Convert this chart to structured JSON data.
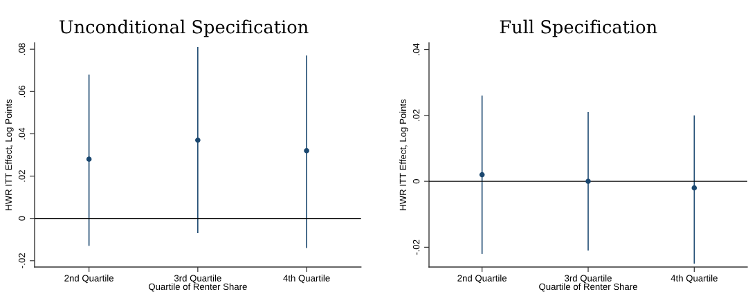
{
  "chart_data": [
    {
      "type": "scatter",
      "title": "Unconditional Specification",
      "xlabel": "Quartile of Renter Share",
      "ylabel": "HWR ITT Effect, Log Points",
      "categories": [
        "2nd Quartile",
        "3rd Quartile",
        "4th Quartile"
      ],
      "values": [
        0.028,
        0.037,
        0.032
      ],
      "errors": [
        [
          -0.013,
          0.068
        ],
        [
          -0.007,
          0.081
        ],
        [
          -0.014,
          0.077
        ]
      ],
      "color": "#1a476f",
      "marker": "circle",
      "ylim": [
        -0.023,
        0.083
      ],
      "yticks": [
        {
          "value": -0.02,
          "label": "-.02"
        },
        0,
        {
          "value": 0.02,
          "label": ".02"
        },
        {
          "value": 0.04,
          "label": ".04"
        },
        {
          "value": 0.06,
          "label": ".06"
        },
        {
          "value": 0.08,
          "label": ".08"
        }
      ],
      "ref_lines": [
        {
          "axis": "y",
          "value": 0,
          "color": "#000000"
        }
      ]
    },
    {
      "type": "scatter",
      "title": "Full Specification",
      "xlabel": "Quartile of Renter Share",
      "ylabel": "HWR ITT Effect, Log Points",
      "categories": [
        "2nd Quartile",
        "3rd Quartile",
        "4th Quartile"
      ],
      "values": [
        0.002,
        0.0,
        -0.002
      ],
      "errors": [
        [
          -0.022,
          0.026
        ],
        [
          -0.021,
          0.021
        ],
        [
          -0.025,
          0.02
        ]
      ],
      "color": "#1a476f",
      "marker": "circle",
      "ylim": [
        -0.026,
        0.042
      ],
      "yticks": [
        {
          "value": -0.02,
          "label": "-.02"
        },
        0,
        {
          "value": 0.02,
          "label": ".02"
        },
        {
          "value": 0.04,
          "label": ".04"
        }
      ],
      "ref_lines": [
        {
          "axis": "y",
          "value": 0,
          "color": "#000000"
        }
      ]
    }
  ]
}
